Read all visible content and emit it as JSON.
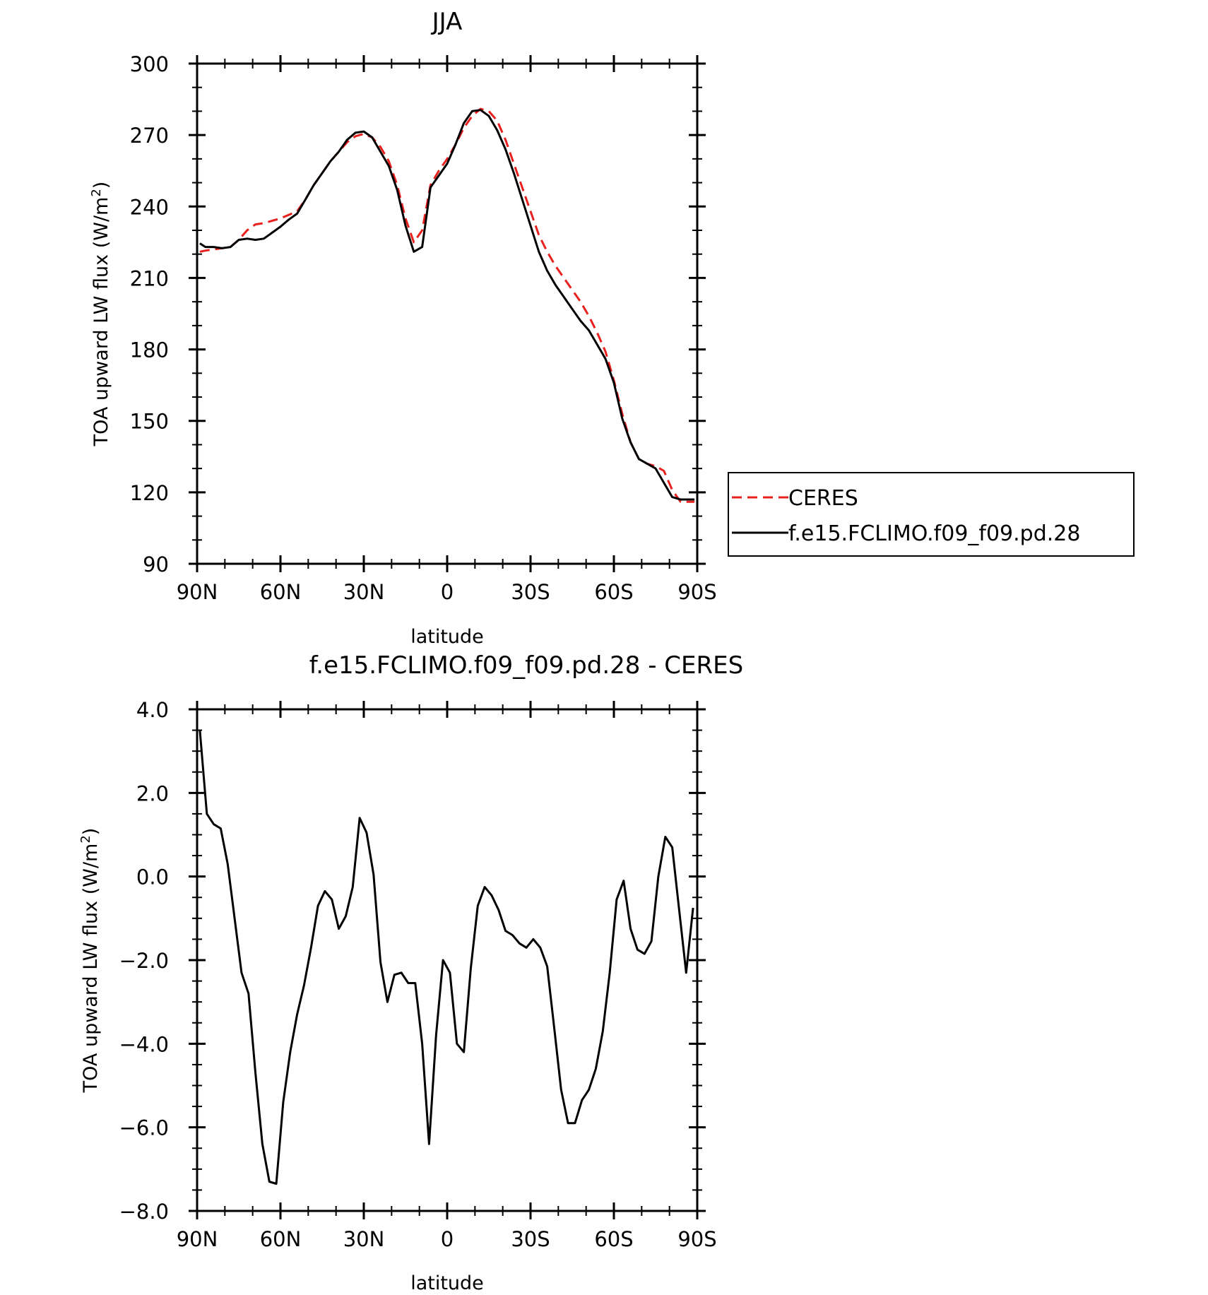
{
  "colors": {
    "ceres": "#e8201e",
    "model": "#000000",
    "frame": "#000000"
  },
  "chart_data": [
    {
      "type": "line",
      "title": "JJA",
      "xlabel": "latitude",
      "ylabel": "TOA upward LW flux (W/m",
      "ylabel_sup": "2",
      "ylabel_close": ")",
      "xlim": [
        -90,
        90
      ],
      "ylim": [
        90,
        300
      ],
      "xticks": [
        -90,
        -60,
        -30,
        0,
        30,
        60,
        90
      ],
      "xtick_labels": [
        "90N",
        "60N",
        "30N",
        "0",
        "30S",
        "60S",
        "90S"
      ],
      "yticks": [
        90,
        120,
        150,
        180,
        210,
        240,
        270,
        300
      ],
      "ytick_labels": [
        "90",
        "120",
        "150",
        "180",
        "210",
        "240",
        "270",
        "300"
      ],
      "legend_position": "right",
      "series": [
        {
          "name": "CERES",
          "style": "dashed",
          "x": [
            -89,
            -87,
            -84,
            -81,
            -78,
            -75,
            -72,
            -69,
            -66,
            -63,
            -60,
            -57,
            -54,
            -51,
            -48,
            -45,
            -42,
            -39,
            -36,
            -33,
            -30,
            -27,
            -24,
            -21,
            -18,
            -15,
            -12,
            -9,
            -6,
            -3,
            0,
            3,
            6,
            9,
            12,
            15,
            18,
            21,
            24,
            27,
            30,
            33,
            36,
            39,
            42,
            45,
            48,
            51,
            54,
            57,
            60,
            63,
            66,
            69,
            72,
            75,
            78,
            81,
            84,
            87,
            89
          ],
          "values": [
            221,
            221.5,
            222,
            222.5,
            223,
            226,
            230,
            232.5,
            233,
            234,
            235,
            236.5,
            238,
            243,
            249,
            254,
            259,
            263,
            267,
            269.5,
            270.5,
            269,
            265,
            259,
            249,
            235,
            225,
            230,
            249,
            255,
            260,
            266,
            273,
            278,
            281,
            280,
            276,
            268,
            258,
            248,
            238,
            228,
            221,
            215,
            210,
            205,
            200,
            194,
            187,
            179,
            167,
            153,
            141,
            134,
            132,
            131,
            129,
            121,
            116,
            116,
            116
          ]
        },
        {
          "name": "f.e15.FCLIMO.f09_f09.pd.28",
          "style": "solid",
          "x": [
            -89,
            -87,
            -84,
            -81,
            -78,
            -75,
            -72,
            -69,
            -66,
            -63,
            -60,
            -57,
            -54,
            -51,
            -48,
            -45,
            -42,
            -39,
            -36,
            -33,
            -30,
            -27,
            -24,
            -21,
            -18,
            -15,
            -12,
            -9,
            -6,
            -3,
            0,
            3,
            6,
            9,
            12,
            15,
            18,
            21,
            24,
            27,
            30,
            33,
            36,
            39,
            42,
            45,
            48,
            51,
            54,
            57,
            60,
            63,
            66,
            69,
            72,
            75,
            78,
            81,
            84,
            87,
            89
          ],
          "values": [
            224.5,
            223,
            223,
            222.5,
            223,
            226,
            226.5,
            226,
            226.5,
            229,
            231.5,
            234.5,
            237,
            243,
            249,
            254,
            259,
            263,
            268,
            271,
            271.5,
            269,
            263,
            257,
            247,
            232,
            221,
            223,
            248,
            253,
            258,
            266,
            275,
            280,
            280.5,
            278,
            272,
            264,
            254,
            243,
            232,
            221,
            213,
            207,
            202,
            197,
            192,
            188,
            182,
            176,
            166,
            151,
            141,
            134,
            132,
            130,
            124,
            118,
            117,
            117,
            117
          ]
        }
      ]
    },
    {
      "type": "line",
      "title": "f.e15.FCLIMO.f09_f09.pd.28 - CERES",
      "xlabel": "latitude",
      "ylabel": "TOA upward LW flux (W/m",
      "ylabel_sup": "2",
      "ylabel_close": ")",
      "xlim": [
        -90,
        90
      ],
      "ylim": [
        -8.0,
        4.0
      ],
      "xticks": [
        -90,
        -60,
        -30,
        0,
        30,
        60,
        90
      ],
      "xtick_labels": [
        "90N",
        "60N",
        "30N",
        "0",
        "30S",
        "60S",
        "90S"
      ],
      "yticks": [
        -8,
        -6,
        -4,
        -2,
        0,
        2,
        4
      ],
      "ytick_labels": [
        "−8.0",
        "−6.0",
        "−4.0",
        "−2.0",
        "0.0",
        "2.0",
        "4.0"
      ],
      "series": [
        {
          "style": "solid",
          "x": [
            -89,
            -86.5,
            -84,
            -81.5,
            -79,
            -76.5,
            -74,
            -71.5,
            -69,
            -66.5,
            -64,
            -61.5,
            -59,
            -56.5,
            -54,
            -51.5,
            -49,
            -46.5,
            -44,
            -41.5,
            -39,
            -36.5,
            -34,
            -31.5,
            -29,
            -26.5,
            -24,
            -21.5,
            -19,
            -16.5,
            -14,
            -11.5,
            -9,
            -6.5,
            -4,
            -1.5,
            1,
            3.5,
            6,
            8.5,
            11,
            13.5,
            16,
            18.5,
            21,
            23.5,
            26,
            28.5,
            31,
            33.5,
            36,
            38.5,
            41,
            43.5,
            46,
            48.5,
            51,
            53.5,
            56,
            58.5,
            61,
            63.5,
            66,
            68.5,
            71,
            73.5,
            76,
            78.5,
            81,
            83.5,
            86,
            88.5
          ],
          "values": [
            3.5,
            1.5,
            1.25,
            1.15,
            0.3,
            -1.0,
            -2.3,
            -2.8,
            -4.7,
            -6.4,
            -7.3,
            -7.35,
            -5.4,
            -4.2,
            -3.3,
            -2.6,
            -1.7,
            -0.7,
            -0.35,
            -0.55,
            -1.25,
            -0.95,
            -0.25,
            1.4,
            1.05,
            0.05,
            -2.05,
            -3.0,
            -2.35,
            -2.3,
            -2.55,
            -2.55,
            -4.0,
            -6.4,
            -3.8,
            -2.0,
            -2.3,
            -4.0,
            -4.2,
            -2.2,
            -0.7,
            -0.25,
            -0.45,
            -0.8,
            -1.3,
            -1.4,
            -1.6,
            -1.7,
            -1.5,
            -1.7,
            -2.15,
            -3.6,
            -5.1,
            -5.9,
            -5.9,
            -5.35,
            -5.1,
            -4.6,
            -3.7,
            -2.3,
            -0.55,
            -0.1,
            -1.25,
            -1.75,
            -1.85,
            -1.55,
            0.0,
            0.95,
            0.7,
            -0.8,
            -2.3,
            -0.75
          ]
        }
      ]
    }
  ]
}
